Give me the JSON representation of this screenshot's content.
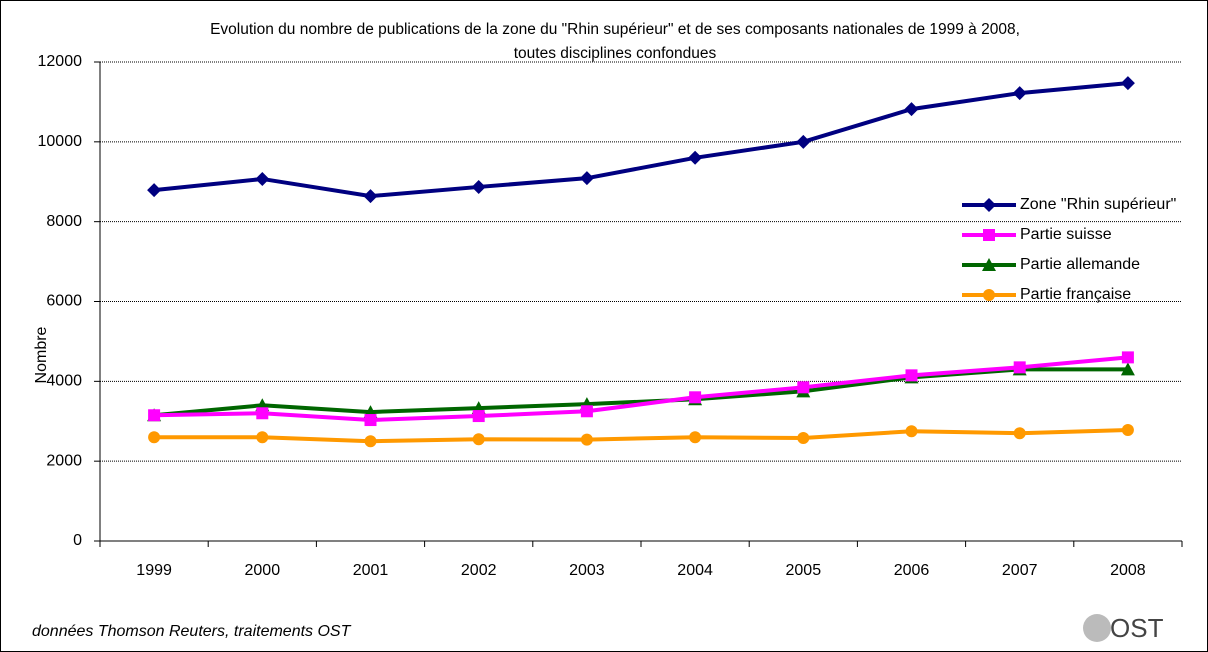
{
  "chart_data": {
    "type": "line",
    "title": [
      "Evolution du nombre de publications de la zone du \"Rhin supérieur\" et de ses composants nationales de 1999 à 2008,",
      "toutes disciplines confondues"
    ],
    "y_label": "Nombre",
    "note": "données Thomson Reuters, traitements OST",
    "logo": "OST",
    "categories": [
      "1999",
      "2000",
      "2001",
      "2002",
      "2003",
      "2004",
      "2005",
      "2006",
      "2007",
      "2008"
    ],
    "ylim": [
      0,
      12000
    ],
    "yticks": [
      0,
      2000,
      4000,
      6000,
      8000,
      10000,
      12000
    ],
    "grid": true,
    "series": [
      {
        "name": "Zone \"Rhin supérieur\"",
        "color": "#000080",
        "marker": "diamond",
        "values": [
          8790,
          9070,
          8640,
          8870,
          9090,
          9600,
          10000,
          10820,
          11220,
          11470
        ]
      },
      {
        "name": "Partie suisse",
        "color": "#ff00ff",
        "marker": "square",
        "values": [
          3150,
          3200,
          3030,
          3130,
          3250,
          3600,
          3850,
          4150,
          4350,
          4600
        ]
      },
      {
        "name": "Partie allemande",
        "color": "#006600",
        "marker": "triangle",
        "values": [
          3150,
          3400,
          3230,
          3330,
          3430,
          3550,
          3750,
          4100,
          4300,
          4300
        ]
      },
      {
        "name": "Partie française",
        "color": "#ff9900",
        "marker": "circle",
        "values": [
          2600,
          2600,
          2500,
          2550,
          2540,
          2600,
          2580,
          2750,
          2700,
          2780
        ]
      }
    ]
  }
}
